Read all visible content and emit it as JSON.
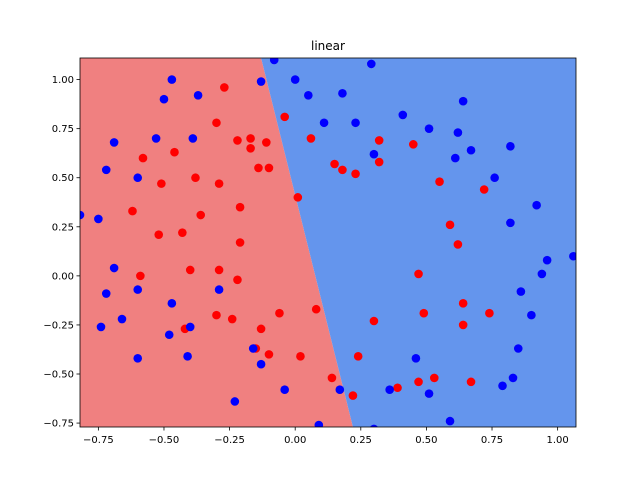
{
  "chart_data": {
    "type": "scatter",
    "title": "linear",
    "xlabel": "",
    "ylabel": "",
    "xlim": [
      -0.82,
      1.07
    ],
    "ylim": [
      -0.77,
      1.11
    ],
    "xticks": [
      -0.75,
      -0.5,
      -0.25,
      0.0,
      0.25,
      0.5,
      0.75,
      1.0
    ],
    "xtick_labels": [
      "−0.75",
      "−0.50",
      "−0.25",
      "0.00",
      "0.25",
      "0.50",
      "0.75",
      "1.00"
    ],
    "yticks": [
      -0.75,
      -0.5,
      -0.25,
      0.0,
      0.25,
      0.5,
      0.75,
      1.0
    ],
    "ytick_labels": [
      "−0.75",
      "−0.50",
      "−0.25",
      "0.00",
      "0.25",
      "0.50",
      "0.75",
      "1.00"
    ],
    "grid": false,
    "legend": "none",
    "decision_boundary": {
      "x_at_y_top": -0.13,
      "x_at_y_bottom": 0.22
    },
    "regions": [
      {
        "side": "left",
        "color": "#f08080"
      },
      {
        "side": "right",
        "color": "#6495ed"
      }
    ],
    "series": [
      {
        "color": "#ff0000",
        "points": [
          [
            -0.27,
            0.96
          ],
          [
            -0.3,
            0.78
          ],
          [
            -0.04,
            0.81
          ],
          [
            -0.46,
            0.63
          ],
          [
            -0.58,
            0.6
          ],
          [
            -0.22,
            0.69
          ],
          [
            -0.17,
            0.7
          ],
          [
            -0.17,
            0.65
          ],
          [
            -0.11,
            0.68
          ],
          [
            -0.38,
            0.5
          ],
          [
            -0.51,
            0.47
          ],
          [
            -0.29,
            0.47
          ],
          [
            -0.14,
            0.55
          ],
          [
            -0.1,
            0.55
          ],
          [
            -0.62,
            0.33
          ],
          [
            -0.21,
            0.35
          ],
          [
            -0.36,
            0.31
          ],
          [
            0.01,
            0.4
          ],
          [
            -0.52,
            0.21
          ],
          [
            -0.43,
            0.22
          ],
          [
            -0.21,
            0.17
          ],
          [
            -0.59,
            0.0
          ],
          [
            -0.4,
            0.03
          ],
          [
            -0.29,
            0.03
          ],
          [
            -0.22,
            -0.02
          ],
          [
            -0.3,
            -0.2
          ],
          [
            -0.24,
            -0.22
          ],
          [
            -0.06,
            -0.19
          ],
          [
            0.08,
            -0.17
          ],
          [
            -0.42,
            -0.27
          ],
          [
            -0.13,
            -0.27
          ],
          [
            -0.15,
            -0.37
          ],
          [
            -0.1,
            -0.4
          ],
          [
            0.02,
            -0.41
          ],
          [
            0.06,
            0.7
          ],
          [
            0.15,
            0.57
          ],
          [
            0.18,
            0.54
          ],
          [
            0.23,
            0.52
          ],
          [
            0.32,
            0.69
          ],
          [
            0.32,
            0.58
          ],
          [
            0.45,
            0.67
          ],
          [
            0.55,
            0.48
          ],
          [
            0.59,
            0.26
          ],
          [
            0.62,
            0.16
          ],
          [
            0.72,
            0.44
          ],
          [
            0.47,
            0.01
          ],
          [
            0.49,
            -0.19
          ],
          [
            0.3,
            -0.23
          ],
          [
            0.64,
            -0.14
          ],
          [
            0.64,
            -0.25
          ],
          [
            0.74,
            -0.19
          ],
          [
            0.14,
            -0.52
          ],
          [
            0.22,
            -0.61
          ],
          [
            0.24,
            -0.41
          ],
          [
            0.39,
            -0.57
          ],
          [
            0.47,
            -0.54
          ],
          [
            0.53,
            -0.52
          ],
          [
            0.67,
            -0.54
          ]
        ]
      },
      {
        "color": "#0000ff",
        "points": [
          [
            -0.47,
            1.0
          ],
          [
            -0.5,
            0.9
          ],
          [
            -0.37,
            0.92
          ],
          [
            -0.13,
            0.99
          ],
          [
            -0.08,
            1.1
          ],
          [
            0.0,
            1.0
          ],
          [
            0.29,
            1.08
          ],
          [
            0.05,
            0.92
          ],
          [
            0.18,
            0.93
          ],
          [
            -0.69,
            0.68
          ],
          [
            -0.53,
            0.7
          ],
          [
            -0.39,
            0.7
          ],
          [
            0.11,
            0.78
          ],
          [
            0.23,
            0.78
          ],
          [
            0.41,
            0.82
          ],
          [
            0.51,
            0.75
          ],
          [
            0.62,
            0.73
          ],
          [
            0.64,
            0.89
          ],
          [
            0.67,
            0.64
          ],
          [
            0.61,
            0.6
          ],
          [
            0.3,
            0.62
          ],
          [
            -0.72,
            0.54
          ],
          [
            -0.6,
            0.5
          ],
          [
            0.76,
            0.5
          ],
          [
            0.82,
            0.66
          ],
          [
            -0.82,
            0.31
          ],
          [
            -0.75,
            0.29
          ],
          [
            0.82,
            0.27
          ],
          [
            0.92,
            0.36
          ],
          [
            -0.69,
            0.04
          ],
          [
            0.96,
            0.08
          ],
          [
            1.06,
            0.1
          ],
          [
            0.94,
            0.01
          ],
          [
            -0.72,
            -0.09
          ],
          [
            -0.6,
            -0.07
          ],
          [
            -0.29,
            -0.07
          ],
          [
            0.86,
            -0.08
          ],
          [
            -0.47,
            -0.14
          ],
          [
            -0.66,
            -0.22
          ],
          [
            -0.74,
            -0.26
          ],
          [
            -0.48,
            -0.3
          ],
          [
            -0.4,
            -0.26
          ],
          [
            0.9,
            -0.2
          ],
          [
            -0.6,
            -0.42
          ],
          [
            -0.41,
            -0.41
          ],
          [
            -0.16,
            -0.37
          ],
          [
            -0.13,
            -0.45
          ],
          [
            0.46,
            -0.42
          ],
          [
            0.85,
            -0.37
          ],
          [
            -0.04,
            -0.58
          ],
          [
            0.17,
            -0.58
          ],
          [
            0.36,
            -0.58
          ],
          [
            0.51,
            -0.6
          ],
          [
            0.79,
            -0.56
          ],
          [
            0.83,
            -0.52
          ],
          [
            -0.23,
            -0.64
          ],
          [
            0.09,
            -0.76
          ],
          [
            0.3,
            -0.78
          ],
          [
            0.59,
            -0.74
          ]
        ]
      }
    ]
  }
}
